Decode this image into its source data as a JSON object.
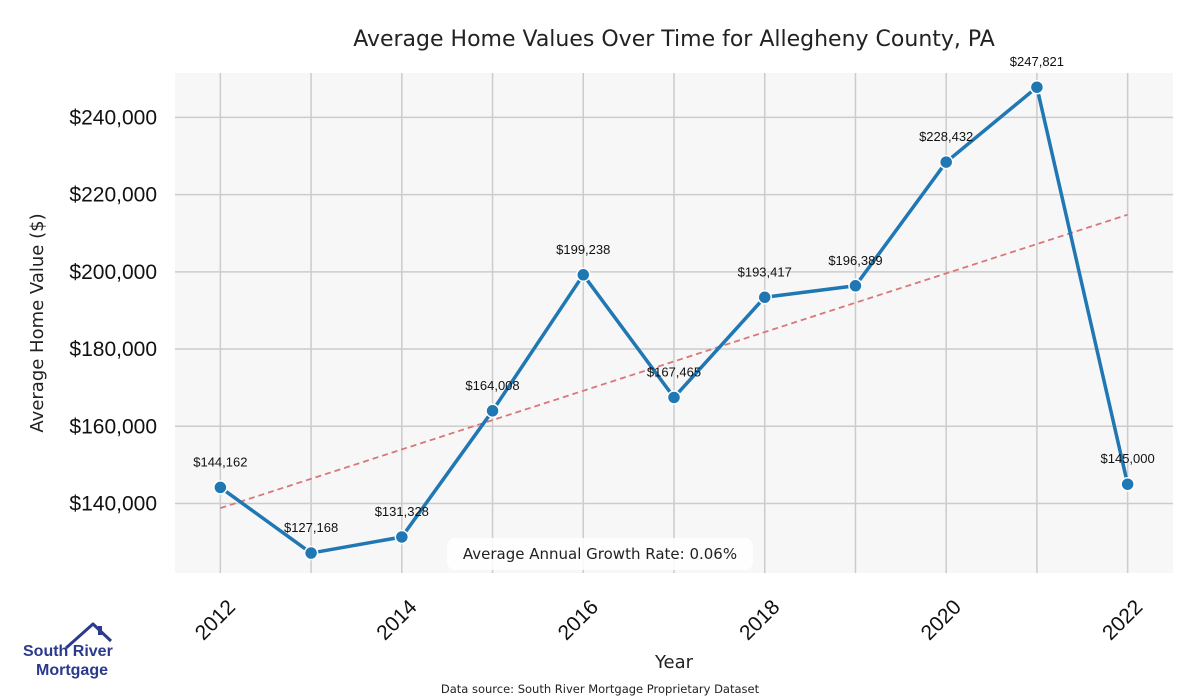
{
  "chart_data": {
    "type": "line",
    "title": "Average Home Values Over Time for Allegheny County, PA",
    "xlabel": "Year",
    "ylabel": "Average Home Value ($)",
    "x": [
      2012,
      2013,
      2014,
      2015,
      2016,
      2017,
      2018,
      2019,
      2020,
      2021,
      2022
    ],
    "series": [
      {
        "values": [
          144162,
          127168,
          131328,
          164008,
          199238,
          167465,
          193417,
          196389,
          228432,
          247821,
          145000
        ],
        "color": "#1f77b4"
      }
    ],
    "data_labels": [
      "$144,162",
      "$127,168",
      "$131,328",
      "$164,008",
      "$199,238",
      "$167,465",
      "$193,417",
      "$196,389",
      "$228,432",
      "$247,821",
      "$145,000"
    ],
    "trend_line": {
      "start": [
        2012,
        138800
      ],
      "end": [
        2022,
        214800
      ],
      "color": "#d9777a",
      "style": "dashed"
    },
    "xlim": [
      2011.5,
      2022.5
    ],
    "ylim": [
      122000,
      251500
    ],
    "xticks": [
      2012,
      2014,
      2016,
      2018,
      2020,
      2022
    ],
    "yticks": [
      140000,
      160000,
      180000,
      200000,
      220000,
      240000
    ],
    "ytick_labels": [
      "$140,000",
      "$160,000",
      "$180,000",
      "$200,000",
      "$220,000",
      "$240,000"
    ],
    "grid": true,
    "annotation": "Average Annual Growth Rate: 0.06%",
    "source": "Data source: South River Mortgage Proprietary Dataset"
  },
  "logo": {
    "line1": "South River",
    "line2": "Mortgage",
    "icon": "house-roof-icon",
    "color": "#2b3a8c"
  }
}
